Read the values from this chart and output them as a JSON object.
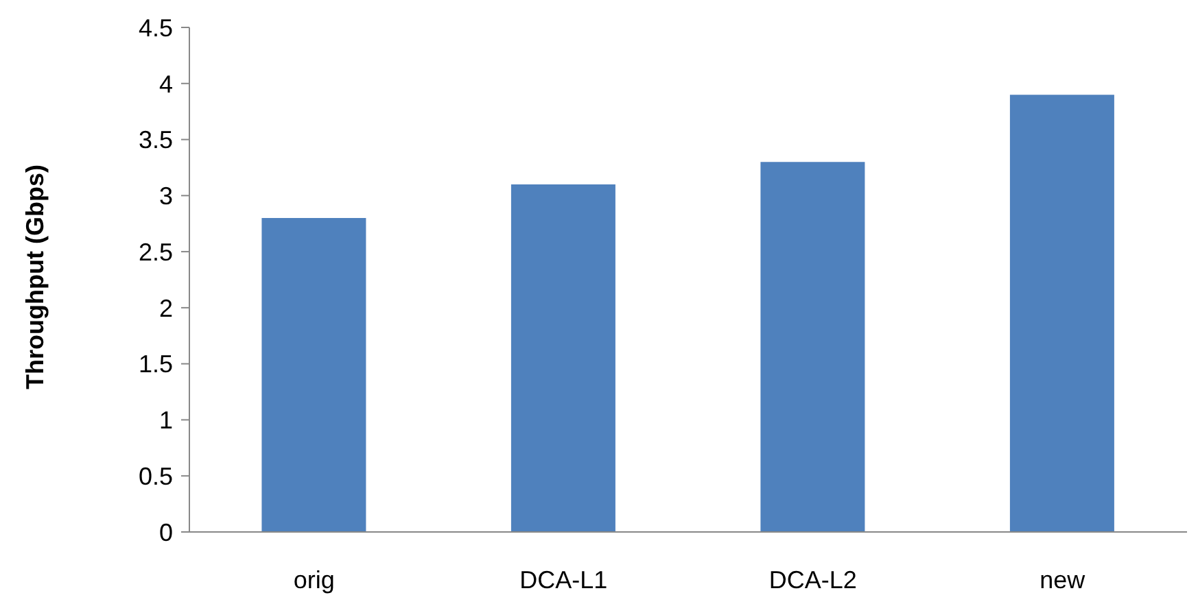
{
  "chart_data": {
    "type": "bar",
    "ylabel": "Throughput (Gbps)",
    "categories": [
      "orig",
      "DCA-L1",
      "DCA-L2",
      "new"
    ],
    "values": [
      2.8,
      3.1,
      3.3,
      3.9
    ],
    "color": "#4f81bd",
    "ylim": [
      0,
      4.5
    ],
    "yticks": [
      0,
      0.5,
      1,
      1.5,
      2,
      2.5,
      3,
      3.5,
      4,
      4.5
    ],
    "grid": false,
    "legend": false
  }
}
